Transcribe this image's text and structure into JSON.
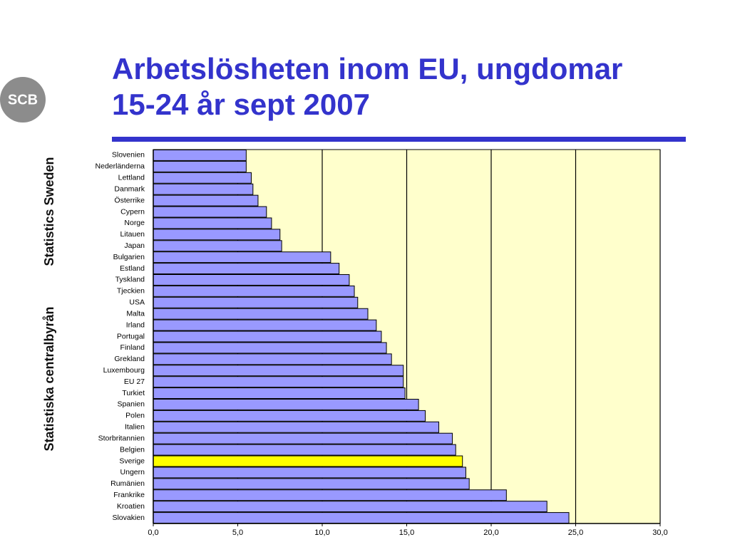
{
  "branding": {
    "logo": "SCB",
    "side_text": [
      "Statistiska centralbyrån",
      "Statistics Sweden"
    ]
  },
  "chart_data": {
    "type": "barh",
    "title": "Arbetslösheten inom EU, ungdomar 15-24 år sept 2007",
    "categories": [
      "Slovenien",
      "Nederländerna",
      "Lettland",
      "Danmark",
      "Österrike",
      "Cypern",
      "Norge",
      "Litauen",
      "Japan",
      "Bulgarien",
      "Estland",
      "Tyskland",
      "Tjeckien",
      "USA",
      "Malta",
      "Irland",
      "Portugal",
      "Finland",
      "Grekland",
      "Luxembourg",
      "EU 27",
      "Turkiet",
      "Spanien",
      "Polen",
      "Italien",
      "Storbritannien",
      "Belgien",
      "Sverige",
      "Ungern",
      "Rumänien",
      "Frankrike",
      "Kroatien",
      "Slovakien"
    ],
    "values": [
      5.5,
      5.5,
      5.8,
      5.9,
      6.2,
      6.7,
      7.0,
      7.5,
      7.6,
      10.5,
      11.0,
      11.6,
      11.9,
      12.1,
      12.7,
      13.2,
      13.5,
      13.8,
      14.1,
      14.8,
      14.8,
      14.9,
      15.7,
      16.1,
      16.9,
      17.7,
      17.9,
      18.3,
      18.5,
      18.7,
      20.9,
      23.3,
      24.6
    ],
    "color": "#9999ff",
    "highlight_category": "Sverige",
    "highlight_color": "#ffff00",
    "plot_background": "#ffffcc",
    "xlim": [
      0,
      30
    ],
    "xticks": [
      {
        "value": 0,
        "label": "0,0"
      },
      {
        "value": 5,
        "label": "5,0"
      },
      {
        "value": 10,
        "label": "10,0"
      },
      {
        "value": 15,
        "label": "15,0"
      },
      {
        "value": 20,
        "label": "20,0"
      },
      {
        "value": 25,
        "label": "25,0"
      },
      {
        "value": 30,
        "label": "30,0"
      }
    ],
    "grid": true
  }
}
